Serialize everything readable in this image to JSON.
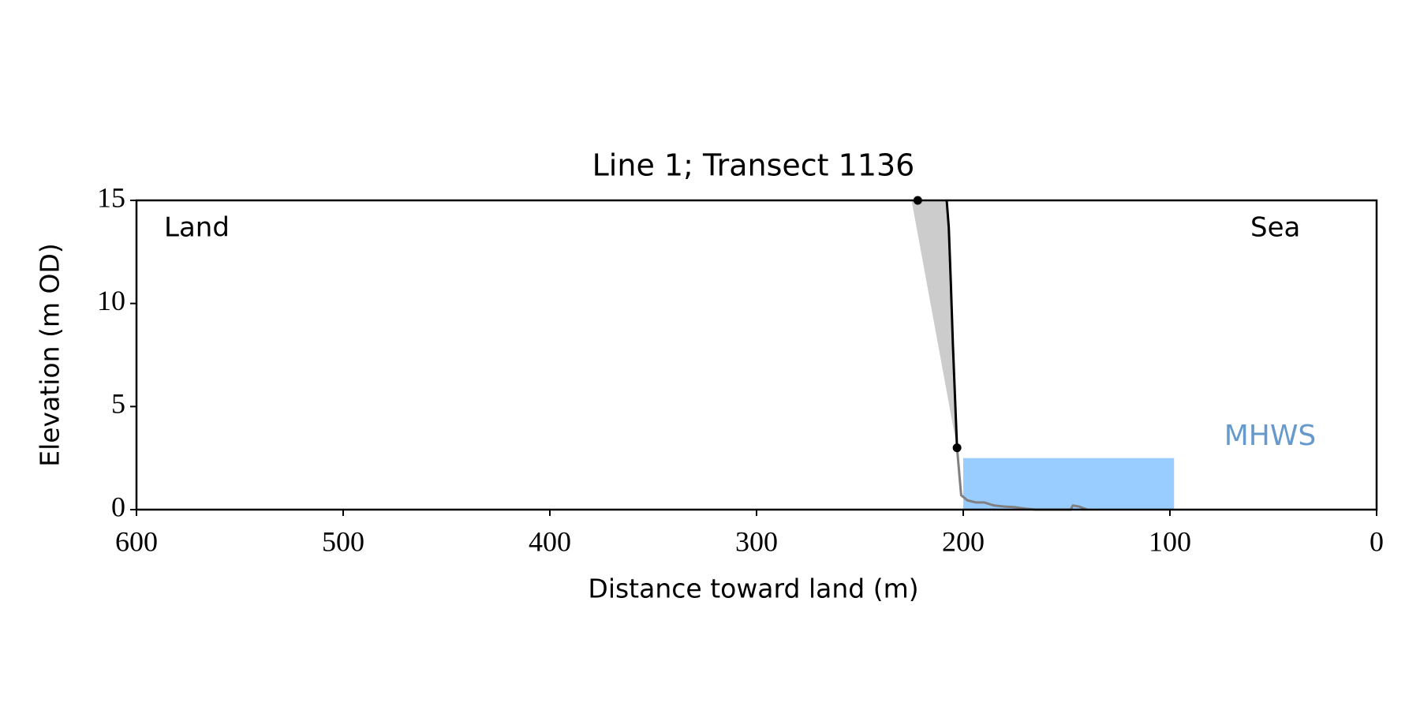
{
  "chart_data": {
    "type": "line",
    "title": "Line 1; Transect 1136",
    "xlabel": "Distance toward land (m)",
    "ylabel": "Elevation (m OD)",
    "xlim": [
      600,
      0
    ],
    "ylim": [
      0,
      15
    ],
    "xticks": [
      600,
      500,
      400,
      300,
      200,
      100,
      0
    ],
    "yticks": [
      0,
      5,
      10,
      15
    ],
    "annotations": [
      "Land",
      "Sea"
    ],
    "areas": [
      {
        "color": "#cccccc",
        "x": [
          225,
          208,
          203
        ],
        "values": [
          15,
          15,
          3
        ]
      }
    ],
    "mhws": {
      "label": "MHWS",
      "value": 2.5,
      "x": [
        200,
        98
      ],
      "color": "#99ccff",
      "label_color": "#6699cc"
    },
    "series": [
      {
        "color": "#808080",
        "x": [
          203,
          201,
          198,
          194,
          190,
          185,
          180,
          175,
          170,
          165,
          148,
          147,
          144,
          140
        ],
        "values": [
          3,
          0.7,
          0.45,
          0.35,
          0.35,
          0.2,
          0.15,
          0.12,
          0.05,
          0,
          0,
          0.2,
          0.15,
          0
        ]
      },
      {
        "color": "#000000",
        "x": [
          208,
          207,
          206,
          205,
          204,
          203
        ],
        "values": [
          15,
          13.7,
          11,
          8,
          5.5,
          3
        ]
      }
    ],
    "points": {
      "color": "#000000",
      "x": [
        222,
        203
      ],
      "values": [
        15,
        3
      ]
    }
  }
}
